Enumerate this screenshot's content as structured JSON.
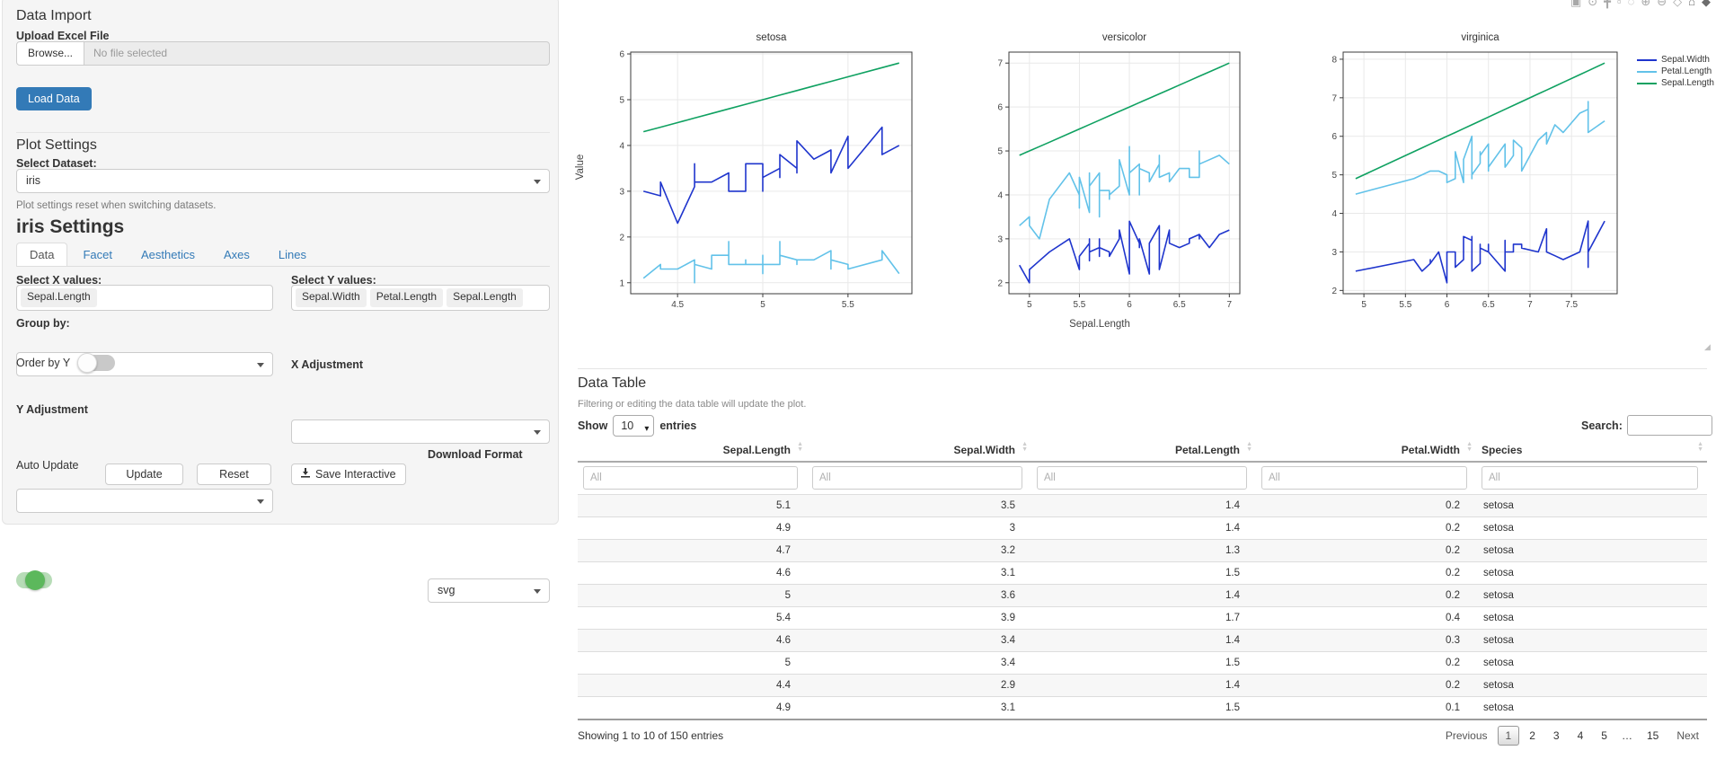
{
  "sidebar": {
    "data_import": {
      "title": "Data Import",
      "upload_label": "Upload Excel File",
      "browse_label": "Browse...",
      "file_placeholder": "No file selected",
      "load_button": "Load Data"
    },
    "plot_settings": {
      "title": "Plot Settings",
      "dataset_label": "Select Dataset:",
      "dataset_value": "iris",
      "note": "Plot settings reset when switching datasets."
    },
    "settings": {
      "title": "iris Settings",
      "tabs": [
        "Data",
        "Facet",
        "Aesthetics",
        "Axes",
        "Lines"
      ],
      "active_tab": "Data",
      "select_x_label": "Select X values:",
      "x_values": [
        "Sepal.Length"
      ],
      "select_y_label": "Select Y values:",
      "y_values": [
        "Sepal.Width",
        "Petal.Length",
        "Sepal.Length"
      ],
      "group_by_label": "Group by:",
      "order_by_y_label": "Order by Y",
      "order_by_y_on": false,
      "x_adjustment_label": "X Adjustment",
      "y_adjustment_label": "Y Adjustment",
      "auto_update_label": "Auto Update",
      "auto_update_on": true,
      "update_button": "Update",
      "reset_button": "Reset",
      "save_button": "Save Interactive",
      "download_format_label": "Download Format",
      "download_format_value": "svg"
    }
  },
  "plot": {
    "modebar_icons": [
      {
        "name": "camera-icon",
        "glyph": "▣"
      },
      {
        "name": "zoom-icon",
        "glyph": "⊙"
      },
      {
        "name": "pan-icon",
        "glyph": "╋"
      },
      {
        "name": "box-select-icon",
        "glyph": "▫"
      },
      {
        "name": "lasso-icon",
        "glyph": "◌"
      },
      {
        "name": "zoom-in-icon",
        "glyph": "⊕"
      },
      {
        "name": "zoom-out-icon",
        "glyph": "⊖"
      },
      {
        "name": "autoscale-icon",
        "glyph": "◇"
      },
      {
        "name": "reset-axes-icon",
        "glyph": "⌂"
      },
      {
        "name": "plotly-logo-icon",
        "glyph": "◆"
      }
    ]
  },
  "chart_data": {
    "type": "line",
    "facets": [
      "setosa",
      "versicolor",
      "virginica"
    ],
    "x_field": "Sepal.Length",
    "series_fields": [
      "Sepal.Width",
      "Petal.Length",
      "Sepal.Length"
    ],
    "series_colors": {
      "Sepal.Width": "#1f35cd",
      "Petal.Length": "#62c2e9",
      "Sepal.Length": "#0fa161"
    },
    "xlabel": "Sepal.Length",
    "ylabel": "Value",
    "legend_position": "right",
    "grid": true,
    "axis_ranges": {
      "setosa": {
        "x": [
          4.225,
          5.875
        ],
        "y": [
          0.76,
          6.04
        ]
      },
      "versicolor": {
        "x": [
          4.795,
          7.105
        ],
        "y": [
          1.75,
          7.25
        ]
      },
      "virginica": {
        "x": [
          4.75,
          8.05
        ],
        "y": [
          1.915,
          8.185
        ]
      }
    },
    "columns": [
      "Sepal.Length",
      "Sepal.Width",
      "Petal.Length",
      "Petal.Width",
      "Species"
    ],
    "rows": [
      [
        5.1,
        3.5,
        1.4,
        0.2,
        "setosa"
      ],
      [
        4.9,
        3.0,
        1.4,
        0.2,
        "setosa"
      ],
      [
        4.7,
        3.2,
        1.3,
        0.2,
        "setosa"
      ],
      [
        4.6,
        3.1,
        1.5,
        0.2,
        "setosa"
      ],
      [
        5.0,
        3.6,
        1.4,
        0.2,
        "setosa"
      ],
      [
        5.4,
        3.9,
        1.7,
        0.4,
        "setosa"
      ],
      [
        4.6,
        3.4,
        1.4,
        0.3,
        "setosa"
      ],
      [
        5.0,
        3.4,
        1.5,
        0.2,
        "setosa"
      ],
      [
        4.4,
        2.9,
        1.4,
        0.2,
        "setosa"
      ],
      [
        4.9,
        3.1,
        1.5,
        0.1,
        "setosa"
      ],
      [
        5.4,
        3.7,
        1.5,
        0.2,
        "setosa"
      ],
      [
        4.8,
        3.4,
        1.6,
        0.2,
        "setosa"
      ],
      [
        4.8,
        3.0,
        1.4,
        0.1,
        "setosa"
      ],
      [
        4.3,
        3.0,
        1.1,
        0.1,
        "setosa"
      ],
      [
        5.8,
        4.0,
        1.2,
        0.2,
        "setosa"
      ],
      [
        5.7,
        4.4,
        1.5,
        0.4,
        "setosa"
      ],
      [
        5.4,
        3.9,
        1.3,
        0.4,
        "setosa"
      ],
      [
        5.1,
        3.5,
        1.4,
        0.3,
        "setosa"
      ],
      [
        5.7,
        3.8,
        1.7,
        0.3,
        "setosa"
      ],
      [
        5.1,
        3.8,
        1.5,
        0.3,
        "setosa"
      ],
      [
        5.4,
        3.4,
        1.7,
        0.2,
        "setosa"
      ],
      [
        5.1,
        3.7,
        1.5,
        0.4,
        "setosa"
      ],
      [
        4.6,
        3.6,
        1.0,
        0.2,
        "setosa"
      ],
      [
        5.1,
        3.3,
        1.7,
        0.5,
        "setosa"
      ],
      [
        4.8,
        3.4,
        1.9,
        0.2,
        "setosa"
      ],
      [
        5.0,
        3.0,
        1.6,
        0.2,
        "setosa"
      ],
      [
        5.0,
        3.4,
        1.6,
        0.4,
        "setosa"
      ],
      [
        5.2,
        3.5,
        1.5,
        0.2,
        "setosa"
      ],
      [
        5.2,
        3.4,
        1.4,
        0.2,
        "setosa"
      ],
      [
        4.7,
        3.2,
        1.6,
        0.2,
        "setosa"
      ],
      [
        4.8,
        3.1,
        1.6,
        0.2,
        "setosa"
      ],
      [
        5.4,
        3.4,
        1.5,
        0.4,
        "setosa"
      ],
      [
        5.2,
        4.1,
        1.5,
        0.1,
        "setosa"
      ],
      [
        5.5,
        4.2,
        1.4,
        0.2,
        "setosa"
      ],
      [
        4.9,
        3.1,
        1.5,
        0.2,
        "setosa"
      ],
      [
        5.0,
        3.2,
        1.2,
        0.2,
        "setosa"
      ],
      [
        5.5,
        3.5,
        1.3,
        0.2,
        "setosa"
      ],
      [
        4.9,
        3.6,
        1.4,
        0.1,
        "setosa"
      ],
      [
        4.4,
        3.0,
        1.3,
        0.2,
        "setosa"
      ],
      [
        5.1,
        3.4,
        1.5,
        0.2,
        "setosa"
      ],
      [
        5.0,
        3.5,
        1.3,
        0.3,
        "setosa"
      ],
      [
        4.5,
        2.3,
        1.3,
        0.3,
        "setosa"
      ],
      [
        4.4,
        3.2,
        1.3,
        0.2,
        "setosa"
      ],
      [
        5.0,
        3.5,
        1.6,
        0.6,
        "setosa"
      ],
      [
        5.1,
        3.8,
        1.9,
        0.4,
        "setosa"
      ],
      [
        4.8,
        3.0,
        1.4,
        0.3,
        "setosa"
      ],
      [
        5.1,
        3.8,
        1.6,
        0.2,
        "setosa"
      ],
      [
        4.6,
        3.2,
        1.4,
        0.2,
        "setosa"
      ],
      [
        5.3,
        3.7,
        1.5,
        0.2,
        "setosa"
      ],
      [
        5.0,
        3.3,
        1.4,
        0.2,
        "setosa"
      ],
      [
        7.0,
        3.2,
        4.7,
        1.4,
        "versicolor"
      ],
      [
        6.4,
        3.2,
        4.5,
        1.5,
        "versicolor"
      ],
      [
        6.9,
        3.1,
        4.9,
        1.5,
        "versicolor"
      ],
      [
        5.5,
        2.3,
        4.0,
        1.3,
        "versicolor"
      ],
      [
        6.5,
        2.8,
        4.6,
        1.5,
        "versicolor"
      ],
      [
        5.7,
        2.8,
        4.5,
        1.3,
        "versicolor"
      ],
      [
        6.3,
        3.3,
        4.7,
        1.6,
        "versicolor"
      ],
      [
        4.9,
        2.4,
        3.3,
        1.0,
        "versicolor"
      ],
      [
        6.6,
        2.9,
        4.6,
        1.3,
        "versicolor"
      ],
      [
        5.2,
        2.7,
        3.9,
        1.4,
        "versicolor"
      ],
      [
        5.0,
        2.0,
        3.5,
        1.0,
        "versicolor"
      ],
      [
        5.9,
        3.0,
        4.2,
        1.5,
        "versicolor"
      ],
      [
        6.0,
        2.2,
        4.0,
        1.0,
        "versicolor"
      ],
      [
        6.1,
        2.9,
        4.7,
        1.4,
        "versicolor"
      ],
      [
        5.6,
        2.9,
        3.6,
        1.3,
        "versicolor"
      ],
      [
        6.7,
        3.1,
        4.4,
        1.4,
        "versicolor"
      ],
      [
        5.6,
        3.0,
        4.5,
        1.5,
        "versicolor"
      ],
      [
        5.8,
        2.7,
        4.1,
        1.0,
        "versicolor"
      ],
      [
        6.2,
        2.2,
        4.5,
        1.5,
        "versicolor"
      ],
      [
        5.6,
        2.5,
        3.9,
        1.1,
        "versicolor"
      ],
      [
        5.9,
        3.2,
        4.8,
        1.8,
        "versicolor"
      ],
      [
        6.1,
        2.8,
        4.0,
        1.3,
        "versicolor"
      ],
      [
        6.3,
        2.5,
        4.9,
        1.5,
        "versicolor"
      ],
      [
        6.1,
        2.8,
        4.7,
        1.2,
        "versicolor"
      ],
      [
        6.4,
        2.9,
        4.3,
        1.3,
        "versicolor"
      ],
      [
        6.6,
        3.0,
        4.4,
        1.4,
        "versicolor"
      ],
      [
        6.8,
        2.8,
        4.8,
        1.4,
        "versicolor"
      ],
      [
        6.7,
        3.0,
        5.0,
        1.7,
        "versicolor"
      ],
      [
        6.0,
        2.9,
        4.5,
        1.5,
        "versicolor"
      ],
      [
        5.7,
        2.6,
        3.5,
        1.0,
        "versicolor"
      ],
      [
        5.5,
        2.4,
        3.8,
        1.1,
        "versicolor"
      ],
      [
        5.5,
        2.4,
        3.7,
        1.0,
        "versicolor"
      ],
      [
        5.8,
        2.7,
        3.9,
        1.2,
        "versicolor"
      ],
      [
        6.0,
        2.7,
        5.1,
        1.6,
        "versicolor"
      ],
      [
        5.4,
        3.0,
        4.5,
        1.5,
        "versicolor"
      ],
      [
        6.0,
        3.4,
        4.5,
        1.6,
        "versicolor"
      ],
      [
        6.7,
        3.1,
        4.7,
        1.5,
        "versicolor"
      ],
      [
        6.3,
        2.3,
        4.4,
        1.3,
        "versicolor"
      ],
      [
        5.6,
        3.0,
        4.1,
        1.3,
        "versicolor"
      ],
      [
        5.5,
        2.5,
        4.0,
        1.3,
        "versicolor"
      ],
      [
        5.5,
        2.6,
        4.4,
        1.2,
        "versicolor"
      ],
      [
        6.1,
        3.0,
        4.6,
        1.4,
        "versicolor"
      ],
      [
        5.8,
        2.6,
        4.0,
        1.2,
        "versicolor"
      ],
      [
        5.0,
        2.3,
        3.3,
        1.0,
        "versicolor"
      ],
      [
        5.6,
        2.7,
        4.2,
        1.3,
        "versicolor"
      ],
      [
        5.7,
        3.0,
        4.2,
        1.2,
        "versicolor"
      ],
      [
        5.7,
        2.9,
        4.2,
        1.3,
        "versicolor"
      ],
      [
        6.2,
        2.9,
        4.3,
        1.3,
        "versicolor"
      ],
      [
        5.1,
        2.5,
        3.0,
        1.1,
        "versicolor"
      ],
      [
        5.7,
        2.8,
        4.1,
        1.3,
        "versicolor"
      ],
      [
        6.3,
        3.3,
        6.0,
        2.5,
        "virginica"
      ],
      [
        5.8,
        2.7,
        5.1,
        1.9,
        "virginica"
      ],
      [
        7.1,
        3.0,
        5.9,
        2.1,
        "virginica"
      ],
      [
        6.3,
        2.9,
        5.6,
        1.8,
        "virginica"
      ],
      [
        6.5,
        3.0,
        5.8,
        2.2,
        "virginica"
      ],
      [
        7.6,
        3.0,
        6.6,
        2.1,
        "virginica"
      ],
      [
        4.9,
        2.5,
        4.5,
        1.7,
        "virginica"
      ],
      [
        7.3,
        2.9,
        6.3,
        1.8,
        "virginica"
      ],
      [
        6.7,
        2.5,
        5.8,
        1.8,
        "virginica"
      ],
      [
        7.2,
        3.6,
        6.1,
        2.5,
        "virginica"
      ],
      [
        6.5,
        3.2,
        5.1,
        2.0,
        "virginica"
      ],
      [
        6.4,
        2.7,
        5.3,
        1.9,
        "virginica"
      ],
      [
        6.8,
        3.0,
        5.5,
        2.1,
        "virginica"
      ],
      [
        5.7,
        2.5,
        5.0,
        2.0,
        "virginica"
      ],
      [
        5.8,
        2.8,
        5.1,
        2.4,
        "virginica"
      ],
      [
        6.4,
        3.2,
        5.3,
        2.3,
        "virginica"
      ],
      [
        6.5,
        3.0,
        5.5,
        1.8,
        "virginica"
      ],
      [
        7.7,
        3.8,
        6.7,
        2.2,
        "virginica"
      ],
      [
        7.7,
        2.6,
        6.9,
        2.3,
        "virginica"
      ],
      [
        6.0,
        2.2,
        5.0,
        1.5,
        "virginica"
      ],
      [
        6.9,
        3.2,
        5.7,
        2.3,
        "virginica"
      ],
      [
        5.6,
        2.8,
        4.9,
        2.0,
        "virginica"
      ],
      [
        7.7,
        2.8,
        6.7,
        2.0,
        "virginica"
      ],
      [
        6.3,
        2.7,
        4.9,
        1.8,
        "virginica"
      ],
      [
        6.7,
        3.3,
        5.7,
        2.1,
        "virginica"
      ],
      [
        7.2,
        3.2,
        6.0,
        1.8,
        "virginica"
      ],
      [
        6.2,
        2.8,
        4.8,
        1.8,
        "virginica"
      ],
      [
        6.1,
        3.0,
        4.9,
        1.8,
        "virginica"
      ],
      [
        6.4,
        2.8,
        5.6,
        2.1,
        "virginica"
      ],
      [
        7.2,
        3.0,
        5.8,
        1.6,
        "virginica"
      ],
      [
        7.4,
        2.8,
        6.1,
        1.9,
        "virginica"
      ],
      [
        7.9,
        3.8,
        6.4,
        2.0,
        "virginica"
      ],
      [
        6.4,
        2.8,
        5.6,
        2.2,
        "virginica"
      ],
      [
        6.3,
        2.8,
        5.1,
        1.5,
        "virginica"
      ],
      [
        6.1,
        2.6,
        5.6,
        1.4,
        "virginica"
      ],
      [
        7.7,
        3.0,
        6.1,
        2.3,
        "virginica"
      ],
      [
        6.3,
        3.4,
        5.6,
        2.4,
        "virginica"
      ],
      [
        6.4,
        3.1,
        5.5,
        1.8,
        "virginica"
      ],
      [
        6.0,
        3.0,
        4.8,
        1.8,
        "virginica"
      ],
      [
        6.9,
        3.1,
        5.4,
        2.1,
        "virginica"
      ],
      [
        6.7,
        3.1,
        5.6,
        2.4,
        "virginica"
      ],
      [
        6.9,
        3.1,
        5.1,
        2.3,
        "virginica"
      ],
      [
        5.8,
        2.7,
        5.1,
        1.9,
        "virginica"
      ],
      [
        6.8,
        3.2,
        5.9,
        2.3,
        "virginica"
      ],
      [
        6.7,
        3.3,
        5.7,
        2.5,
        "virginica"
      ],
      [
        6.7,
        3.0,
        5.2,
        2.3,
        "virginica"
      ],
      [
        6.3,
        2.5,
        5.0,
        1.9,
        "virginica"
      ],
      [
        6.5,
        3.0,
        5.2,
        2.0,
        "virginica"
      ],
      [
        6.2,
        3.4,
        5.4,
        2.3,
        "virginica"
      ],
      [
        5.9,
        3.0,
        5.1,
        1.8,
        "virginica"
      ]
    ]
  },
  "table": {
    "title": "Data Table",
    "note": "Filtering or editing the data table will update the plot.",
    "show_label": "Show",
    "length_value": "10",
    "entries_label": "entries",
    "search_label": "Search:",
    "columns": [
      "Sepal.Length",
      "Sepal.Width",
      "Petal.Length",
      "Petal.Width",
      "Species"
    ],
    "filter_placeholder": "All",
    "rows": [
      [
        "5.1",
        "3.5",
        "1.4",
        "0.2",
        "setosa"
      ],
      [
        "4.9",
        "3",
        "1.4",
        "0.2",
        "setosa"
      ],
      [
        "4.7",
        "3.2",
        "1.3",
        "0.2",
        "setosa"
      ],
      [
        "4.6",
        "3.1",
        "1.5",
        "0.2",
        "setosa"
      ],
      [
        "5",
        "3.6",
        "1.4",
        "0.2",
        "setosa"
      ],
      [
        "5.4",
        "3.9",
        "1.7",
        "0.4",
        "setosa"
      ],
      [
        "4.6",
        "3.4",
        "1.4",
        "0.3",
        "setosa"
      ],
      [
        "5",
        "3.4",
        "1.5",
        "0.2",
        "setosa"
      ],
      [
        "4.4",
        "2.9",
        "1.4",
        "0.2",
        "setosa"
      ],
      [
        "4.9",
        "3.1",
        "1.5",
        "0.1",
        "setosa"
      ]
    ],
    "info": "Showing 1 to 10 of 150 entries",
    "pagination": {
      "previous": "Previous",
      "pages": [
        "1",
        "2",
        "3",
        "4",
        "5",
        "…",
        "15"
      ],
      "current": "1",
      "next": "Next"
    }
  }
}
